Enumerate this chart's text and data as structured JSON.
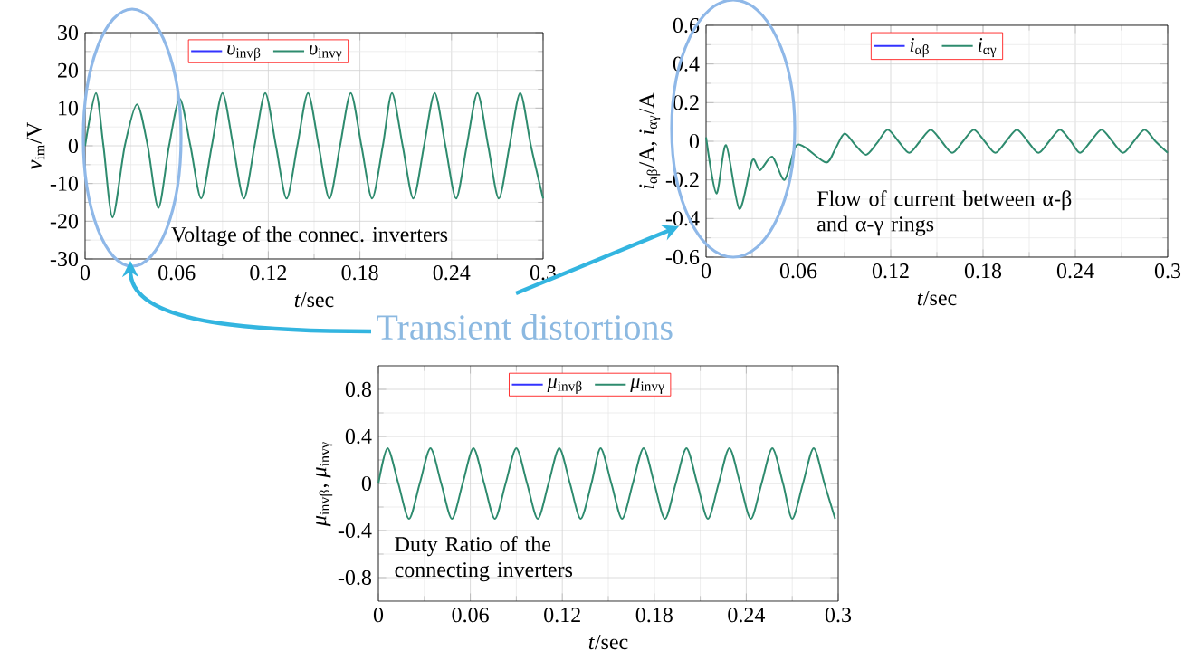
{
  "chart_data": [
    {
      "type": "line",
      "xlabel": "*t*/sec",
      "ylabel": "*v*$_{im}$/V",
      "xlim": [
        0,
        0.3
      ],
      "xticks": [
        0,
        0.06,
        0.12,
        0.18,
        0.24,
        0.3
      ],
      "ylim": [
        -30,
        30
      ],
      "yticks": [
        -30,
        -20,
        -10,
        0,
        10,
        20,
        30
      ],
      "grid": true,
      "legend": "top",
      "line_style": "solid",
      "annotations": [
        "Voltage of the connec. inverters",
        "Transient distortions"
      ],
      "x": [
        0,
        0.0071,
        0.012,
        0.018,
        0.026,
        0.034,
        0.041,
        0.048,
        0.055,
        0.062,
        0.069,
        0.076,
        0.083,
        0.09,
        0.097,
        0.104,
        0.111,
        0.118,
        0.125,
        0.132,
        0.139,
        0.146,
        0.153,
        0.16,
        0.167,
        0.174,
        0.181,
        0.188,
        0.195,
        0.201,
        0.208,
        0.215,
        0.222,
        0.229,
        0.236,
        0.243,
        0.25,
        0.257,
        0.264,
        0.271,
        0.278,
        0.285,
        0.292,
        0.3
      ],
      "series": [
        {
          "name": "*υ*$_{invβ}$",
          "color": "#3333ff",
          "values": [
            null,
            null,
            null,
            null,
            null,
            null,
            null,
            null,
            null,
            null,
            null,
            null,
            null,
            null,
            null,
            null,
            null,
            null,
            null,
            null,
            null,
            null,
            null,
            null,
            null,
            null,
            null,
            null,
            null,
            null,
            null,
            null,
            null,
            null,
            null,
            null,
            null,
            null,
            null,
            null,
            null,
            null,
            null,
            null
          ]
        },
        {
          "name": "*υ*$_{invγ}$",
          "color": "#2e8b6e",
          "values": [
            0,
            14,
            0,
            -19,
            0,
            11,
            0,
            -16.5,
            0,
            12.5,
            0,
            -14,
            0,
            14,
            0,
            -14,
            0,
            14,
            0,
            -14,
            0,
            14,
            0,
            -14,
            0,
            14,
            0,
            -14,
            0,
            14,
            0,
            -14,
            0,
            14,
            0,
            -14,
            0,
            14,
            0,
            -14,
            0,
            14,
            0,
            -14
          ]
        }
      ]
    },
    {
      "type": "line",
      "xlabel": "*t*/sec",
      "ylabel": "*i*$_{αβ}$/A, *i*$_{αγ}$/A",
      "xlim": [
        0,
        0.3
      ],
      "xticks": [
        0,
        0.06,
        0.12,
        0.18,
        0.24,
        0.3
      ],
      "ylim": [
        -0.6,
        0.6
      ],
      "yticks": [
        -0.6,
        -0.4,
        -0.2,
        0,
        0.2,
        0.4,
        0.6
      ],
      "grid": true,
      "legend": "top",
      "line_style": "solid",
      "annotations": [
        "Flow of current between α-β and α-γ rings"
      ],
      "x": [
        0,
        0.0067,
        0.013,
        0.0216,
        0.03,
        0.035,
        0.043,
        0.051,
        0.058,
        0.064,
        0.078,
        0.084,
        0.09,
        0.097,
        0.104,
        0.111,
        0.118,
        0.125,
        0.132,
        0.139,
        0.146,
        0.153,
        0.16,
        0.167,
        0.174,
        0.181,
        0.188,
        0.195,
        0.202,
        0.209,
        0.216,
        0.223,
        0.23,
        0.237,
        0.243,
        0.25,
        0.257,
        0.264,
        0.271,
        0.278,
        0.285,
        0.292,
        0.3
      ],
      "series": [
        {
          "name": "*i*$_{αβ}$",
          "color": "#3333ff",
          "values": [
            null,
            null,
            null,
            null,
            null,
            null,
            null,
            null,
            null,
            null,
            null,
            null,
            null,
            null,
            null,
            null,
            null,
            null,
            null,
            null,
            null,
            null,
            null,
            null,
            null,
            null,
            null,
            null,
            null,
            null,
            null,
            null,
            null,
            null,
            null,
            null,
            null,
            null,
            null,
            null,
            null,
            null,
            null
          ]
        },
        {
          "name": "*i*$_{αγ}$",
          "color": "#2e8b6e",
          "values": [
            0.02,
            -0.27,
            -0.02,
            -0.35,
            -0.1,
            -0.15,
            -0.08,
            -0.2,
            -0.03,
            -0.03,
            -0.11,
            -0.04,
            0.04,
            -0.02,
            -0.07,
            -0.01,
            0.06,
            0,
            -0.06,
            0,
            0.06,
            0,
            -0.06,
            0,
            0.06,
            0,
            -0.06,
            0,
            0.06,
            0,
            -0.06,
            0,
            0.06,
            0,
            -0.06,
            0,
            0.06,
            0,
            -0.06,
            0,
            0.06,
            0,
            -0.06
          ]
        }
      ]
    },
    {
      "type": "line",
      "xlabel": "*t*/sec",
      "ylabel": "*μ*$_{invβ}$, *μ*$_{invγ}$",
      "xlim": [
        0,
        0.3
      ],
      "xticks": [
        0,
        0.06,
        0.12,
        0.18,
        0.24,
        0.3
      ],
      "ylim": [
        -1,
        1
      ],
      "yticks": [
        -0.8,
        -0.4,
        0,
        0.4,
        0.8
      ],
      "grid": true,
      "legend": "top",
      "line_style": "solid",
      "annotations": [
        "Duty Ratio of the connecting inverters"
      ],
      "x": [
        0,
        0.006,
        0.013,
        0.02,
        0.027,
        0.034,
        0.041,
        0.048,
        0.055,
        0.062,
        0.069,
        0.076,
        0.083,
        0.09,
        0.097,
        0.104,
        0.111,
        0.118,
        0.125,
        0.132,
        0.139,
        0.145,
        0.152,
        0.159,
        0.166,
        0.173,
        0.18,
        0.187,
        0.194,
        0.201,
        0.208,
        0.215,
        0.222,
        0.229,
        0.236,
        0.243,
        0.25,
        0.257,
        0.264,
        0.27,
        0.277,
        0.284,
        0.291,
        0.298
      ],
      "series": [
        {
          "name": "*μ*$_{invβ}$",
          "color": "#3333ff",
          "values": [
            null,
            null,
            null,
            null,
            null,
            null,
            null,
            null,
            null,
            null,
            null,
            null,
            null,
            null,
            null,
            null,
            null,
            null,
            null,
            null,
            null,
            null,
            null,
            null,
            null,
            null,
            null,
            null,
            null,
            null,
            null,
            null,
            null,
            null,
            null,
            null,
            null,
            null,
            null,
            null,
            null,
            null,
            null,
            null
          ]
        },
        {
          "name": "*μ*$_{invγ}$",
          "color": "#2e8b6e",
          "values": [
            0,
            0.3,
            0,
            -0.3,
            0,
            0.3,
            0,
            -0.3,
            0,
            0.3,
            0,
            -0.3,
            0,
            0.3,
            0,
            -0.3,
            0,
            0.3,
            0,
            -0.3,
            0,
            0.3,
            0,
            -0.3,
            0,
            0.3,
            0,
            -0.3,
            0,
            0.3,
            0,
            -0.3,
            0,
            0.3,
            0,
            -0.3,
            0,
            0.3,
            0,
            -0.3,
            0,
            0.3,
            0,
            -0.3
          ]
        }
      ]
    }
  ]
}
